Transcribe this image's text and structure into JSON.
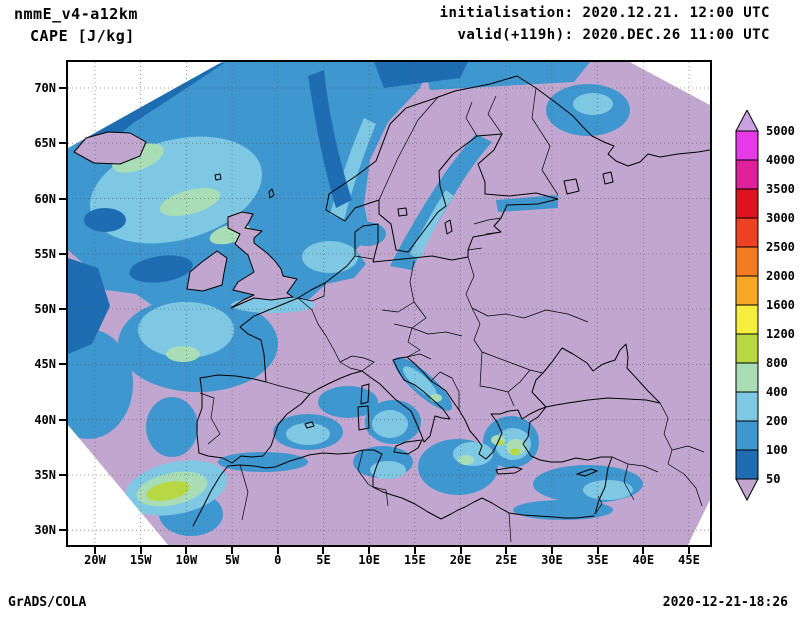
{
  "header": {
    "model": "nmmE_v4-a12km",
    "variable": "CAPE [J/kg]",
    "init": "initialisation: 2020.12.21. 12:00 UTC",
    "valid": "valid(+119h): 2020.DEC.26 11:00 UTC"
  },
  "map": {
    "y_ticks": [
      "70N",
      "65N",
      "60N",
      "55N",
      "50N",
      "45N",
      "40N",
      "35N",
      "30N"
    ],
    "x_ticks": [
      "20W",
      "15W",
      "10W",
      "5W",
      "0",
      "5E",
      "10E",
      "15E",
      "20E",
      "25E",
      "30E",
      "35E",
      "40E",
      "45E"
    ]
  },
  "colorbar": {
    "labels": [
      "5000",
      "4000",
      "3500",
      "3000",
      "2500",
      "2000",
      "1600",
      "1200",
      "800",
      "400",
      "200",
      "100",
      "50"
    ],
    "colors_top_to_bottom": [
      "#c9a0e0",
      "#e839e8",
      "#e0209a",
      "#dd1420",
      "#ee4023",
      "#f47b20",
      "#f9a826",
      "#f5ee3d",
      "#b7d743",
      "#a9ddb5",
      "#7ec8e3",
      "#3f97cf",
      "#1e6db2",
      "#c1a7cf"
    ]
  },
  "palette": {
    "below_min_background": "#c1a7cf",
    "level_50_100": "#1e6db2",
    "level_100_200": "#3f97cf",
    "level_200_400": "#7ec8e3",
    "level_400_800": "#a9ddb5",
    "level_800_1200": "#b7d743"
  },
  "footer": {
    "credit": "GrADS/COLA",
    "timestamp": "2020-12-21-18:26"
  }
}
